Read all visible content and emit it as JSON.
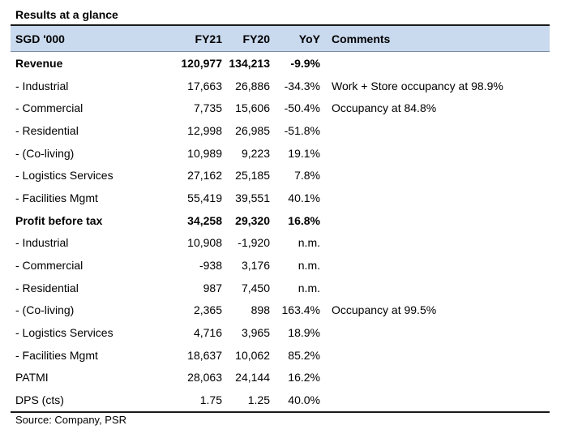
{
  "title": "Results at a glance",
  "headers": {
    "label": "SGD '000",
    "fy21": "FY21",
    "fy20": "FY20",
    "yoy": "YoY",
    "comments": "Comments"
  },
  "rows": [
    {
      "label": "Revenue",
      "fy21": "120,977",
      "fy20": "134,213",
      "yoy": "-9.9%",
      "comment": "",
      "bold": true
    },
    {
      "label": "- Industrial",
      "fy21": "17,663",
      "fy20": "26,886",
      "yoy": "-34.3%",
      "comment": "Work + Store occupancy at 98.9%"
    },
    {
      "label": "- Commercial",
      "fy21": "7,735",
      "fy20": "15,606",
      "yoy": "-50.4%",
      "comment": "Occupancy at 84.8%"
    },
    {
      "label": "- Residential",
      "fy21": "12,998",
      "fy20": "26,985",
      "yoy": "-51.8%",
      "comment": ""
    },
    {
      "label": "- (Co-living)",
      "fy21": "10,989",
      "fy20": "9,223",
      "yoy": "19.1%",
      "comment": ""
    },
    {
      "label": "- Logistics Services",
      "fy21": "27,162",
      "fy20": "25,185",
      "yoy": "7.8%",
      "comment": ""
    },
    {
      "label": "- Facilities Mgmt",
      "fy21": "55,419",
      "fy20": "39,551",
      "yoy": "40.1%",
      "comment": ""
    },
    {
      "label": "Profit before tax",
      "fy21": "34,258",
      "fy20": "29,320",
      "yoy": "16.8%",
      "comment": "",
      "bold": true
    },
    {
      "label": "- Industrial",
      "fy21": "10,908",
      "fy20": "-1,920",
      "yoy": "n.m.",
      "comment": ""
    },
    {
      "label": "- Commercial",
      "fy21": "-938",
      "fy20": "3,176",
      "yoy": "n.m.",
      "comment": ""
    },
    {
      "label": "- Residential",
      "fy21": "987",
      "fy20": "7,450",
      "yoy": "n.m.",
      "comment": ""
    },
    {
      "label": "- (Co-living)",
      "fy21": "2,365",
      "fy20": "898",
      "yoy": "163.4%",
      "comment": "Occupancy at 99.5%"
    },
    {
      "label": "- Logistics Services",
      "fy21": "4,716",
      "fy20": "3,965",
      "yoy": "18.9%",
      "comment": ""
    },
    {
      "label": "- Facilities Mgmt",
      "fy21": "18,637",
      "fy20": "10,062",
      "yoy": "85.2%",
      "comment": ""
    },
    {
      "label": "PATMI",
      "fy21": "28,063",
      "fy20": "24,144",
      "yoy": "16.2%",
      "comment": ""
    },
    {
      "label": "DPS (cts)",
      "fy21": "1.75",
      "fy20": "1.25",
      "yoy": "40.0%",
      "comment": ""
    }
  ],
  "source": "Source: Company, PSR"
}
